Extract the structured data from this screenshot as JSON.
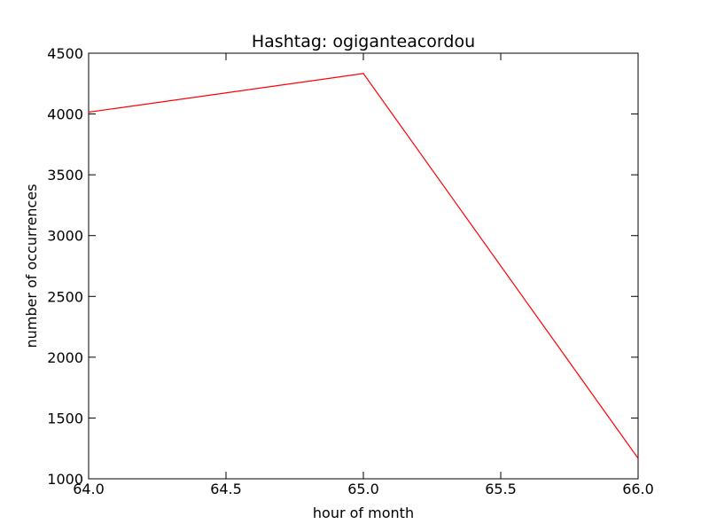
{
  "chart_data": {
    "type": "line",
    "title": "Hashtag: ogiganteacordou",
    "xlabel": "hour of month",
    "ylabel": "number of occurrences",
    "xlim": [
      64.0,
      66.0
    ],
    "ylim": [
      1000,
      4500
    ],
    "xticks": [
      64.0,
      64.5,
      65.0,
      65.5,
      66.0
    ],
    "xtick_labels": [
      "64.0",
      "64.5",
      "65.0",
      "65.5",
      "66.0"
    ],
    "yticks": [
      1000,
      1500,
      2000,
      2500,
      3000,
      3500,
      4000,
      4500
    ],
    "ytick_labels": [
      "1000",
      "1500",
      "2000",
      "2500",
      "3000",
      "3500",
      "4000",
      "4500"
    ],
    "grid": false,
    "series": [
      {
        "color": "#ff0000",
        "x": [
          64,
          65,
          66
        ],
        "y": [
          4015,
          4333,
          1168
        ]
      }
    ]
  }
}
